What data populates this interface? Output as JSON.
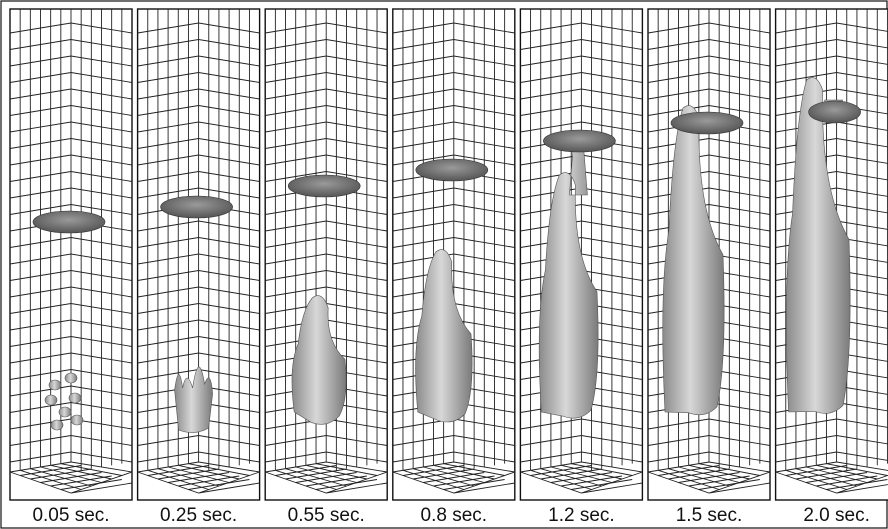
{
  "figure": {
    "panels": [
      {
        "label": "0.05 sec."
      },
      {
        "label": "0.25 sec."
      },
      {
        "label": "0.55 sec."
      },
      {
        "label": "0.8 sec."
      },
      {
        "label": "1.2 sec."
      },
      {
        "label": "1.5 sec."
      },
      {
        "label": "2.0 sec."
      }
    ]
  }
}
